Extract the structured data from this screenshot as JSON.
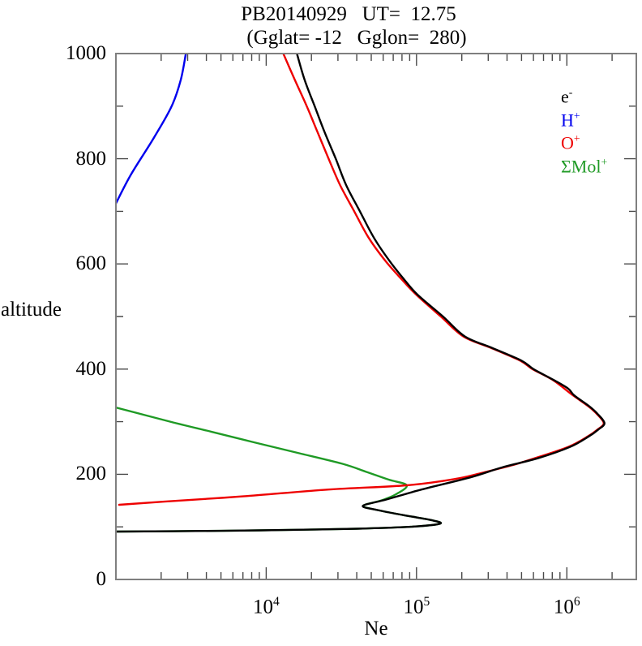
{
  "chart_data": {
    "type": "line",
    "title": "PB20140929   UT=  12.75",
    "subtitle": "(Gglat= -12   Gglon=  280)",
    "xlabel": "Ne",
    "ylabel": "altitude",
    "x_scale": "log",
    "x_range": [
      1000,
      2900000
    ],
    "y_range": [
      0,
      1000
    ],
    "grid": false,
    "legend_position": "upper-right-inside",
    "frame_color": "#7f7f7f",
    "tick_color": "#4a4a4a",
    "x_ticks_major": [
      10000,
      100000,
      1000000
    ],
    "x_tick_labels": [
      {
        "base": "10",
        "exp": "4"
      },
      {
        "base": "10",
        "exp": "5"
      },
      {
        "base": "10",
        "exp": "6"
      }
    ],
    "y_ticks_major": [
      0,
      200,
      400,
      600,
      800,
      1000
    ],
    "y_ticks_minor": [
      100,
      300,
      500,
      700,
      900
    ],
    "legend": [
      {
        "slug": "electron",
        "base": "e",
        "sup": "-",
        "color": "#000000"
      },
      {
        "slug": "h-plus",
        "base": "H",
        "sup": "+",
        "color": "#0000ee"
      },
      {
        "slug": "o-plus",
        "base": "O",
        "sup": "+",
        "color": "#ee0000"
      },
      {
        "slug": "mol-plus",
        "base": "ΣMol",
        "sup": "+",
        "color": "#1f9a25"
      }
    ],
    "series": [
      {
        "name": "ΣMol+",
        "slug": "mol-plus",
        "color": "#1f9a25",
        "points_format": "[Ne cm^-3, altitude km]",
        "points": [
          [
            1000,
            327
          ],
          [
            2300,
            300
          ],
          [
            4300,
            281
          ],
          [
            8500,
            260
          ],
          [
            16600,
            240
          ],
          [
            32000,
            220
          ],
          [
            46000,
            205
          ],
          [
            65000,
            190
          ],
          [
            86000,
            179
          ],
          [
            73000,
            162
          ],
          [
            58000,
            150
          ],
          [
            44000,
            140
          ],
          [
            55000,
            132
          ],
          [
            83000,
            122
          ],
          [
            125000,
            113
          ],
          [
            143000,
            106
          ],
          [
            89000,
            100
          ],
          [
            40000,
            96.5
          ],
          [
            13000,
            94
          ],
          [
            5000,
            92.5
          ],
          [
            1000,
            91
          ]
        ]
      },
      {
        "name": "O+",
        "slug": "o-plus",
        "color": "#ee0000",
        "points_format": "[Ne cm^-3, altitude km]",
        "points": [
          [
            1050,
            142
          ],
          [
            2100,
            148
          ],
          [
            7000,
            158
          ],
          [
            26000,
            171
          ],
          [
            86000,
            179
          ],
          [
            180000,
            191
          ],
          [
            275000,
            203
          ],
          [
            430000,
            217
          ],
          [
            620000,
            231
          ],
          [
            1020000,
            252
          ],
          [
            1380000,
            272
          ],
          [
            1600000,
            285
          ],
          [
            1760000,
            297
          ],
          [
            1580000,
            315
          ],
          [
            1380000,
            330
          ],
          [
            1100000,
            350
          ],
          [
            800000,
            380
          ],
          [
            590000,
            400
          ],
          [
            490000,
            416
          ],
          [
            315000,
            440
          ],
          [
            205000,
            462
          ],
          [
            145000,
            500
          ],
          [
            100000,
            541
          ],
          [
            80000,
            570
          ],
          [
            62000,
            606
          ],
          [
            48000,
            650
          ],
          [
            38500,
            700
          ],
          [
            31000,
            750
          ],
          [
            26000,
            800
          ],
          [
            22000,
            850
          ],
          [
            18600,
            900
          ],
          [
            15500,
            950
          ],
          [
            13000,
            1000
          ]
        ]
      },
      {
        "name": "e-",
        "slug": "electron",
        "color": "#000000",
        "points_format": "[Ne cm^-3, altitude km]",
        "points": [
          [
            1000,
            91
          ],
          [
            5000,
            92.5
          ],
          [
            13000,
            94
          ],
          [
            40000,
            96.5
          ],
          [
            89000,
            100
          ],
          [
            143000,
            106
          ],
          [
            125000,
            113
          ],
          [
            83000,
            122
          ],
          [
            55000,
            132
          ],
          [
            44000,
            140
          ],
          [
            63000,
            152
          ],
          [
            108000,
            171
          ],
          [
            227000,
            194
          ],
          [
            370000,
            213
          ],
          [
            650000,
            231
          ],
          [
            1050000,
            252
          ],
          [
            1400000,
            272
          ],
          [
            1620000,
            285
          ],
          [
            1780000,
            297
          ],
          [
            1600000,
            315
          ],
          [
            1400000,
            330
          ],
          [
            1120000,
            350
          ],
          [
            1020000,
            363
          ],
          [
            810000,
            380
          ],
          [
            600000,
            400
          ],
          [
            500000,
            416
          ],
          [
            320000,
            440
          ],
          [
            210000,
            462
          ],
          [
            150000,
            500
          ],
          [
            102000,
            541
          ],
          [
            83000,
            570
          ],
          [
            66000,
            606
          ],
          [
            52000,
            650
          ],
          [
            42000,
            700
          ],
          [
            34000,
            750
          ],
          [
            29000,
            800
          ],
          [
            24500,
            850
          ],
          [
            21000,
            900
          ],
          [
            18000,
            950
          ],
          [
            16000,
            1000
          ]
        ]
      },
      {
        "name": "H+",
        "slug": "h-plus",
        "color": "#0000ee",
        "points_format": "[Ne cm^-3, altitude km]",
        "points": [
          [
            1000,
            715
          ],
          [
            1260,
            770
          ],
          [
            1800,
            841
          ],
          [
            2350,
            900
          ],
          [
            2700,
            950
          ],
          [
            2920,
            1000
          ]
        ]
      }
    ]
  }
}
